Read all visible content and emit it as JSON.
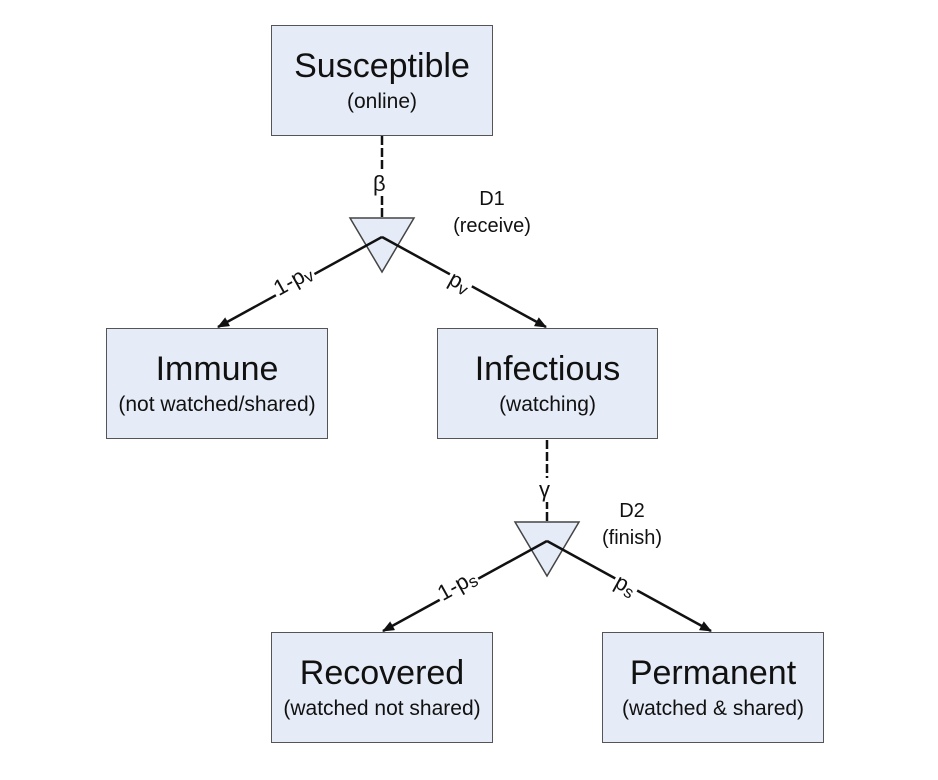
{
  "states": {
    "susceptible": {
      "title": "Susceptible",
      "sub": "(online)"
    },
    "immune": {
      "title": "Immune",
      "sub": "(not watched/shared)"
    },
    "infectious": {
      "title": "Infectious",
      "sub": "(watching)"
    },
    "recovered": {
      "title": "Recovered",
      "sub": "(watched not shared)"
    },
    "permanent": {
      "title": "Permanent",
      "sub": "(watched & shared)"
    }
  },
  "decisions": {
    "d1": {
      "name": "D1",
      "sub": "(receive)"
    },
    "d2": {
      "name": "D2",
      "sub": "(finish)"
    }
  },
  "transitions": {
    "beta": "β",
    "gamma": "γ",
    "not_view": {
      "base": "1-p",
      "sub": "v"
    },
    "view": {
      "base": "p",
      "sub": "v"
    },
    "not_share": {
      "base": "1-p",
      "sub": "s"
    },
    "share": {
      "base": "p",
      "sub": "s"
    }
  },
  "colors": {
    "box_fill": "#e6ecf7",
    "box_border": "#555555",
    "arrow": "#111111"
  }
}
